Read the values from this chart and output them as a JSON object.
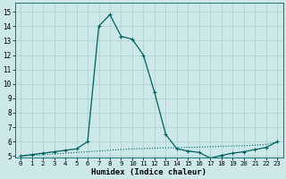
{
  "xlabel": "Humidex (Indice chaleur)",
  "bg_color": "#cce8e8",
  "grid_color": "#aacfcf",
  "line_color": "#006060",
  "xlim": [
    -0.5,
    23.5
  ],
  "ylim": [
    4.9,
    15.6
  ],
  "xticks": [
    0,
    1,
    2,
    3,
    4,
    5,
    6,
    7,
    8,
    9,
    10,
    11,
    12,
    13,
    14,
    15,
    16,
    17,
    18,
    19,
    20,
    21,
    22,
    23
  ],
  "yticks": [
    5,
    6,
    7,
    8,
    9,
    10,
    11,
    12,
    13,
    14,
    15
  ],
  "line1_x": [
    0,
    1,
    2,
    3,
    4,
    5,
    6,
    7,
    8,
    9,
    10,
    11,
    12,
    13,
    14,
    15,
    16,
    17,
    18,
    19,
    20,
    21,
    22,
    23
  ],
  "line1_y": [
    5.0,
    5.05,
    5.1,
    5.15,
    5.2,
    5.25,
    5.3,
    5.35,
    5.4,
    5.45,
    5.5,
    5.52,
    5.55,
    5.57,
    5.58,
    5.6,
    5.62,
    5.65,
    5.67,
    5.7,
    5.72,
    5.75,
    5.8,
    6.0
  ],
  "line2_x": [
    0,
    1,
    2,
    3,
    4,
    5,
    6,
    7,
    8,
    9,
    10,
    11,
    12,
    13,
    14,
    15,
    16,
    17,
    18,
    19,
    20,
    21,
    22,
    23
  ],
  "line2_y": [
    5.0,
    5.1,
    5.2,
    5.3,
    5.4,
    5.5,
    6.0,
    14.0,
    14.8,
    13.3,
    13.1,
    12.0,
    9.4,
    6.5,
    5.5,
    5.35,
    5.25,
    4.85,
    5.05,
    5.2,
    5.3,
    5.45,
    5.6,
    6.0
  ]
}
